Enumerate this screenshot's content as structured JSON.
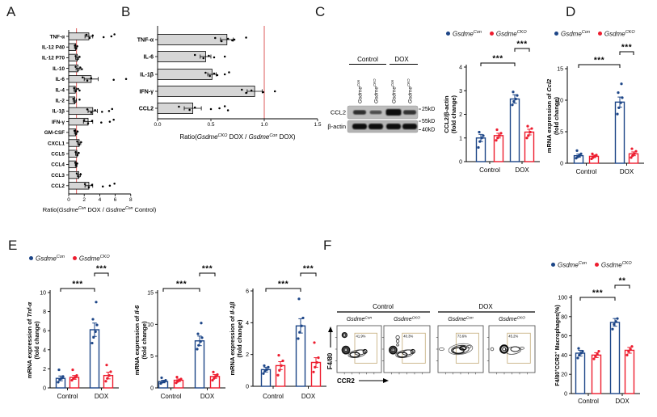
{
  "panel_labels": {
    "A": "A",
    "B": "B",
    "C": "C",
    "D": "D",
    "E": "E",
    "F": "F"
  },
  "colors": {
    "con": "#1c4587",
    "cko": "#ed1c2e",
    "bar_gray": "#d6d6d6",
    "ref_line": "#e06a6a",
    "gate": "#c9b385",
    "axis": "#000000"
  },
  "legend_entries": [
    {
      "name": "Gsdme",
      "sup": "Con",
      "color_key": "con"
    },
    {
      "name": "Gsdme",
      "sup": "CKO",
      "color_key": "cko"
    }
  ],
  "chart_data": [
    {
      "id": "A",
      "type": "bar",
      "orientation": "horizontal",
      "categories": [
        "TNF-α",
        "IL-12 P40",
        "IL-12 P70",
        "IL-10",
        "IL-6",
        "IL-4",
        "IL-2",
        "IL-1β",
        "IFN-γ",
        "GM-CSF",
        "CXCL1",
        "CCL5",
        "CCL4",
        "CCL3",
        "CCL2"
      ],
      "values": [
        2.6,
        0.9,
        1.1,
        1.2,
        2.9,
        0.85,
        0.8,
        3.1,
        2.5,
        0.9,
        1.35,
        1.05,
        0.95,
        1.3,
        2.6
      ],
      "errors": [
        0.5,
        0.15,
        0.2,
        0.25,
        0.9,
        0.15,
        0.2,
        0.6,
        0.6,
        0.15,
        0.2,
        0.15,
        0.1,
        0.2,
        0.5
      ],
      "dots": [
        [
          2.3,
          2.7,
          3.1,
          4.5,
          5.5,
          5.9
        ],
        [
          0.8,
          0.95,
          1.1
        ],
        [
          0.9,
          1.1,
          1.4
        ],
        [
          0.9,
          1.2,
          1.5,
          1.7
        ],
        [
          1.8,
          2.4,
          2.9,
          5.8,
          7.4
        ],
        [
          0.7,
          0.9,
          1.2,
          1.4
        ],
        [
          0.6,
          0.8,
          1.4
        ],
        [
          2.4,
          2.9,
          3.4,
          4.3,
          5.2,
          5.6
        ],
        [
          2.0,
          2.5,
          3.0,
          4.2,
          5.3,
          5.8
        ],
        [
          0.75,
          0.95,
          1.15
        ],
        [
          1.1,
          1.35,
          1.6
        ],
        [
          0.9,
          1.1,
          1.3
        ],
        [
          0.85,
          1.0,
          1.1
        ],
        [
          1.05,
          1.3,
          1.55
        ],
        [
          2.1,
          2.6,
          3.0,
          4.4,
          5.3,
          5.9
        ]
      ],
      "xlim": [
        0,
        8
      ],
      "xtick_vals": [
        0,
        2,
        4,
        6,
        8
      ],
      "xtick_labels": [
        "0",
        "2",
        "4",
        "6",
        "8"
      ],
      "refline": 1,
      "xlabel_parts": [
        {
          "t": "Ratio("
        },
        {
          "t": "Gsdme",
          "i": true
        },
        {
          "t": "Con",
          "sup": true
        },
        {
          "t": " DOX / "
        },
        {
          "t": "Gsdme",
          "i": true
        },
        {
          "t": "Con",
          "sup": true
        },
        {
          "t": " Control)"
        }
      ]
    },
    {
      "id": "B",
      "type": "bar",
      "orientation": "horizontal",
      "categories": [
        "TNF-α",
        "IL-6",
        "IL-1β",
        "IFN-γ",
        "CCL2"
      ],
      "values": [
        0.65,
        0.45,
        0.51,
        0.91,
        0.33
      ],
      "errors": [
        0.06,
        0.05,
        0.04,
        0.07,
        0.08
      ],
      "dots": [
        [
          0.54,
          0.6,
          0.66,
          0.7,
          0.72,
          0.83
        ],
        [
          0.35,
          0.43,
          0.48,
          0.53,
          0.63
        ],
        [
          0.45,
          0.49,
          0.53,
          0.56,
          0.63,
          0.67
        ],
        [
          0.79,
          0.83,
          0.88,
          0.99,
          1.1
        ],
        [
          0.2,
          0.3,
          0.35,
          0.5,
          0.58,
          0.63,
          0.66
        ]
      ],
      "xlim": [
        0,
        1.5
      ],
      "xtick_vals": [
        0,
        0.5,
        1.0,
        1.5
      ],
      "xtick_labels": [
        "0.0",
        "0.5",
        "1.0",
        "1.5"
      ],
      "refline": 1.0,
      "xlabel_parts": [
        {
          "t": "Ratio("
        },
        {
          "t": "Gsdme",
          "i": true
        },
        {
          "t": "CKO",
          "sup": true
        },
        {
          "t": " DOX / "
        },
        {
          "t": "Gsdme",
          "i": true
        },
        {
          "t": "Con",
          "sup": true
        },
        {
          "t": " DOX)"
        }
      ]
    },
    {
      "id": "C",
      "type": "grouped-bar",
      "groups": [
        "Control",
        "DOX"
      ],
      "ylabel_main": [
        {
          "t": "CCL2/β-actin"
        }
      ],
      "ylabel_sub": "(fold change)",
      "ylim": [
        0,
        4
      ],
      "yticks": [
        0,
        1,
        2,
        3,
        4
      ],
      "series": [
        {
          "key": "con",
          "values": [
            1.0,
            2.65
          ],
          "errors": [
            0.15,
            0.18
          ],
          "dots": [
            [
              0.6,
              0.85,
              1.0,
              1.1,
              1.25
            ],
            [
              2.4,
              2.55,
              2.65,
              2.8,
              2.95
            ]
          ]
        },
        {
          "key": "cko",
          "values": [
            1.1,
            1.25
          ],
          "errors": [
            0.1,
            0.12
          ],
          "dots": [
            [
              0.9,
              1.0,
              1.1,
              1.2,
              1.35
            ],
            [
              1.0,
              1.1,
              1.25,
              1.4,
              1.5
            ]
          ]
        }
      ],
      "sig_long": "***",
      "sig_short": "***"
    },
    {
      "id": "D",
      "type": "grouped-bar",
      "groups": [
        "Control",
        "DOX"
      ],
      "ylabel_main": [
        {
          "t": "mRNA expression of "
        },
        {
          "t": "Ccl2",
          "i": true
        }
      ],
      "ylabel_sub": "(fold change)",
      "ylim": [
        0,
        15
      ],
      "yticks": [
        0,
        5,
        10,
        15
      ],
      "series": [
        {
          "key": "con",
          "values": [
            1.2,
            9.7
          ],
          "errors": [
            0.25,
            0.8
          ],
          "dots": [
            [
              0.8,
              1.0,
              1.2,
              1.5,
              2.0
            ],
            [
              7.8,
              8.8,
              9.6,
              10.4,
              11.2,
              12.6
            ]
          ]
        },
        {
          "key": "cko",
          "values": [
            1.1,
            1.5
          ],
          "errors": [
            0.2,
            0.3
          ],
          "dots": [
            [
              0.7,
              0.9,
              1.1,
              1.3,
              1.5
            ],
            [
              0.9,
              1.2,
              1.5,
              1.9,
              2.3
            ]
          ]
        }
      ],
      "sig_long": "***",
      "sig_short": "***"
    },
    {
      "id": "E1",
      "type": "grouped-bar",
      "groups": [
        "Control",
        "DOX"
      ],
      "ylabel_main": [
        {
          "t": "mRNA expression of "
        },
        {
          "t": "Tnf-α",
          "i": true
        }
      ],
      "ylabel_sub": "(fold change)",
      "ylim": [
        0,
        10
      ],
      "yticks": [
        0,
        2,
        4,
        6,
        8,
        10
      ],
      "series": [
        {
          "key": "con",
          "values": [
            1.0,
            6.1
          ],
          "errors": [
            0.25,
            0.7
          ],
          "dots": [
            [
              0.6,
              0.9,
              1.0,
              1.2,
              1.9
            ],
            [
              4.7,
              5.3,
              5.9,
              6.6,
              7.2,
              9.0
            ]
          ]
        },
        {
          "key": "cko",
          "values": [
            1.1,
            1.3
          ],
          "errors": [
            0.2,
            0.35
          ],
          "dots": [
            [
              0.8,
              1.0,
              1.1,
              1.3,
              1.9
            ],
            [
              0.7,
              1.0,
              1.3,
              1.7,
              2.4
            ]
          ]
        }
      ],
      "sig_long": "***",
      "sig_short": "***"
    },
    {
      "id": "E2",
      "type": "grouped-bar",
      "groups": [
        "Control",
        "DOX"
      ],
      "ylabel_main": [
        {
          "t": "mRNA expression of "
        },
        {
          "t": "Il-6",
          "i": true
        }
      ],
      "ylabel_sub": "(fold change)",
      "ylim": [
        0,
        15
      ],
      "yticks": [
        0,
        5,
        10,
        15
      ],
      "series": [
        {
          "key": "con",
          "values": [
            1.0,
            7.4
          ],
          "errors": [
            0.2,
            0.75
          ],
          "dots": [
            [
              0.7,
              0.9,
              1.0,
              1.2,
              1.6
            ],
            [
              6.1,
              6.7,
              7.3,
              7.9,
              8.5,
              10.2
            ]
          ]
        },
        {
          "key": "cko",
          "values": [
            1.2,
            1.8
          ],
          "errors": [
            0.2,
            0.3
          ],
          "dots": [
            [
              0.8,
              1.0,
              1.2,
              1.4,
              1.7
            ],
            [
              1.2,
              1.5,
              1.8,
              2.1,
              2.5
            ]
          ]
        }
      ],
      "sig_long": "***",
      "sig_short": "***"
    },
    {
      "id": "E3",
      "type": "grouped-bar",
      "groups": [
        "Control",
        "DOX"
      ],
      "ylabel_main": [
        {
          "t": "mRNA expression of "
        },
        {
          "t": "Il-1β",
          "i": true
        }
      ],
      "ylabel_sub": "(fold change)",
      "ylim": [
        0,
        6
      ],
      "yticks": [
        0,
        2,
        4,
        6
      ],
      "series": [
        {
          "key": "con",
          "values": [
            1.05,
            3.8
          ],
          "errors": [
            0.15,
            0.45
          ],
          "dots": [
            [
              0.8,
              0.95,
              1.05,
              1.2,
              1.3
            ],
            [
              3.0,
              3.4,
              3.8,
              4.3,
              5.5
            ]
          ]
        },
        {
          "key": "cko",
          "values": [
            1.3,
            1.5
          ],
          "errors": [
            0.25,
            0.3
          ],
          "dots": [
            [
              0.7,
              1.0,
              1.3,
              1.6,
              1.95
            ],
            [
              0.9,
              1.2,
              1.5,
              1.8,
              2.75
            ]
          ]
        }
      ],
      "sig_long": "***",
      "sig_short": "***"
    },
    {
      "id": "F",
      "type": "grouped-bar",
      "groups": [
        "Control",
        "DOX"
      ],
      "ylabel_main": [
        {
          "t": "F4/80"
        },
        {
          "t": "+",
          "sup": true
        },
        {
          "t": "CCR2"
        },
        {
          "t": "+",
          "sup": true
        },
        {
          "t": " Macrophages(%)"
        }
      ],
      "ylabel_sub": null,
      "ylim": [
        0,
        100
      ],
      "yticks": [
        0,
        20,
        40,
        60,
        80,
        100
      ],
      "series": [
        {
          "key": "con",
          "values": [
            42,
            74
          ],
          "errors": [
            3,
            4
          ],
          "dots": [
            [
              37,
              40,
              42,
              44,
              47
            ],
            [
              67,
              72,
              75,
              78
            ]
          ]
        },
        {
          "key": "cko",
          "values": [
            40,
            45
          ],
          "errors": [
            2.5,
            3
          ],
          "dots": [
            [
              36,
              39,
              41,
              44
            ],
            [
              40,
              44,
              46,
              49
            ]
          ]
        }
      ],
      "sig_long": "***",
      "sig_short": "**"
    }
  ],
  "western_blot": {
    "group_labels": [
      "Control",
      "DOX"
    ],
    "lane_labels": [
      {
        "name": "Gsdme",
        "sup": "Con"
      },
      {
        "name": "Gsdme",
        "sup": "CKO"
      },
      {
        "name": "Gsdme",
        "sup": "Con"
      },
      {
        "name": "Gsdme",
        "sup": "CKO"
      }
    ],
    "row_labels": [
      "CCL2",
      "β-actin"
    ],
    "markers": [
      "25kD",
      "55kD",
      "40kD"
    ]
  },
  "flow": {
    "group_labels": [
      "Control",
      "DOX"
    ],
    "plot_labels": [
      {
        "name": "Gsdme",
        "sup": "Con"
      },
      {
        "name": "Gsdme",
        "sup": "CKO"
      },
      {
        "name": "Gsdme",
        "sup": "Con"
      },
      {
        "name": "Gsdme",
        "sup": "CKO"
      }
    ],
    "x_axis": "CCR2",
    "y_axis": "F4/80",
    "gate_values": [
      "41.9%",
      "40.3%",
      "73.6%",
      "45.2%"
    ]
  }
}
